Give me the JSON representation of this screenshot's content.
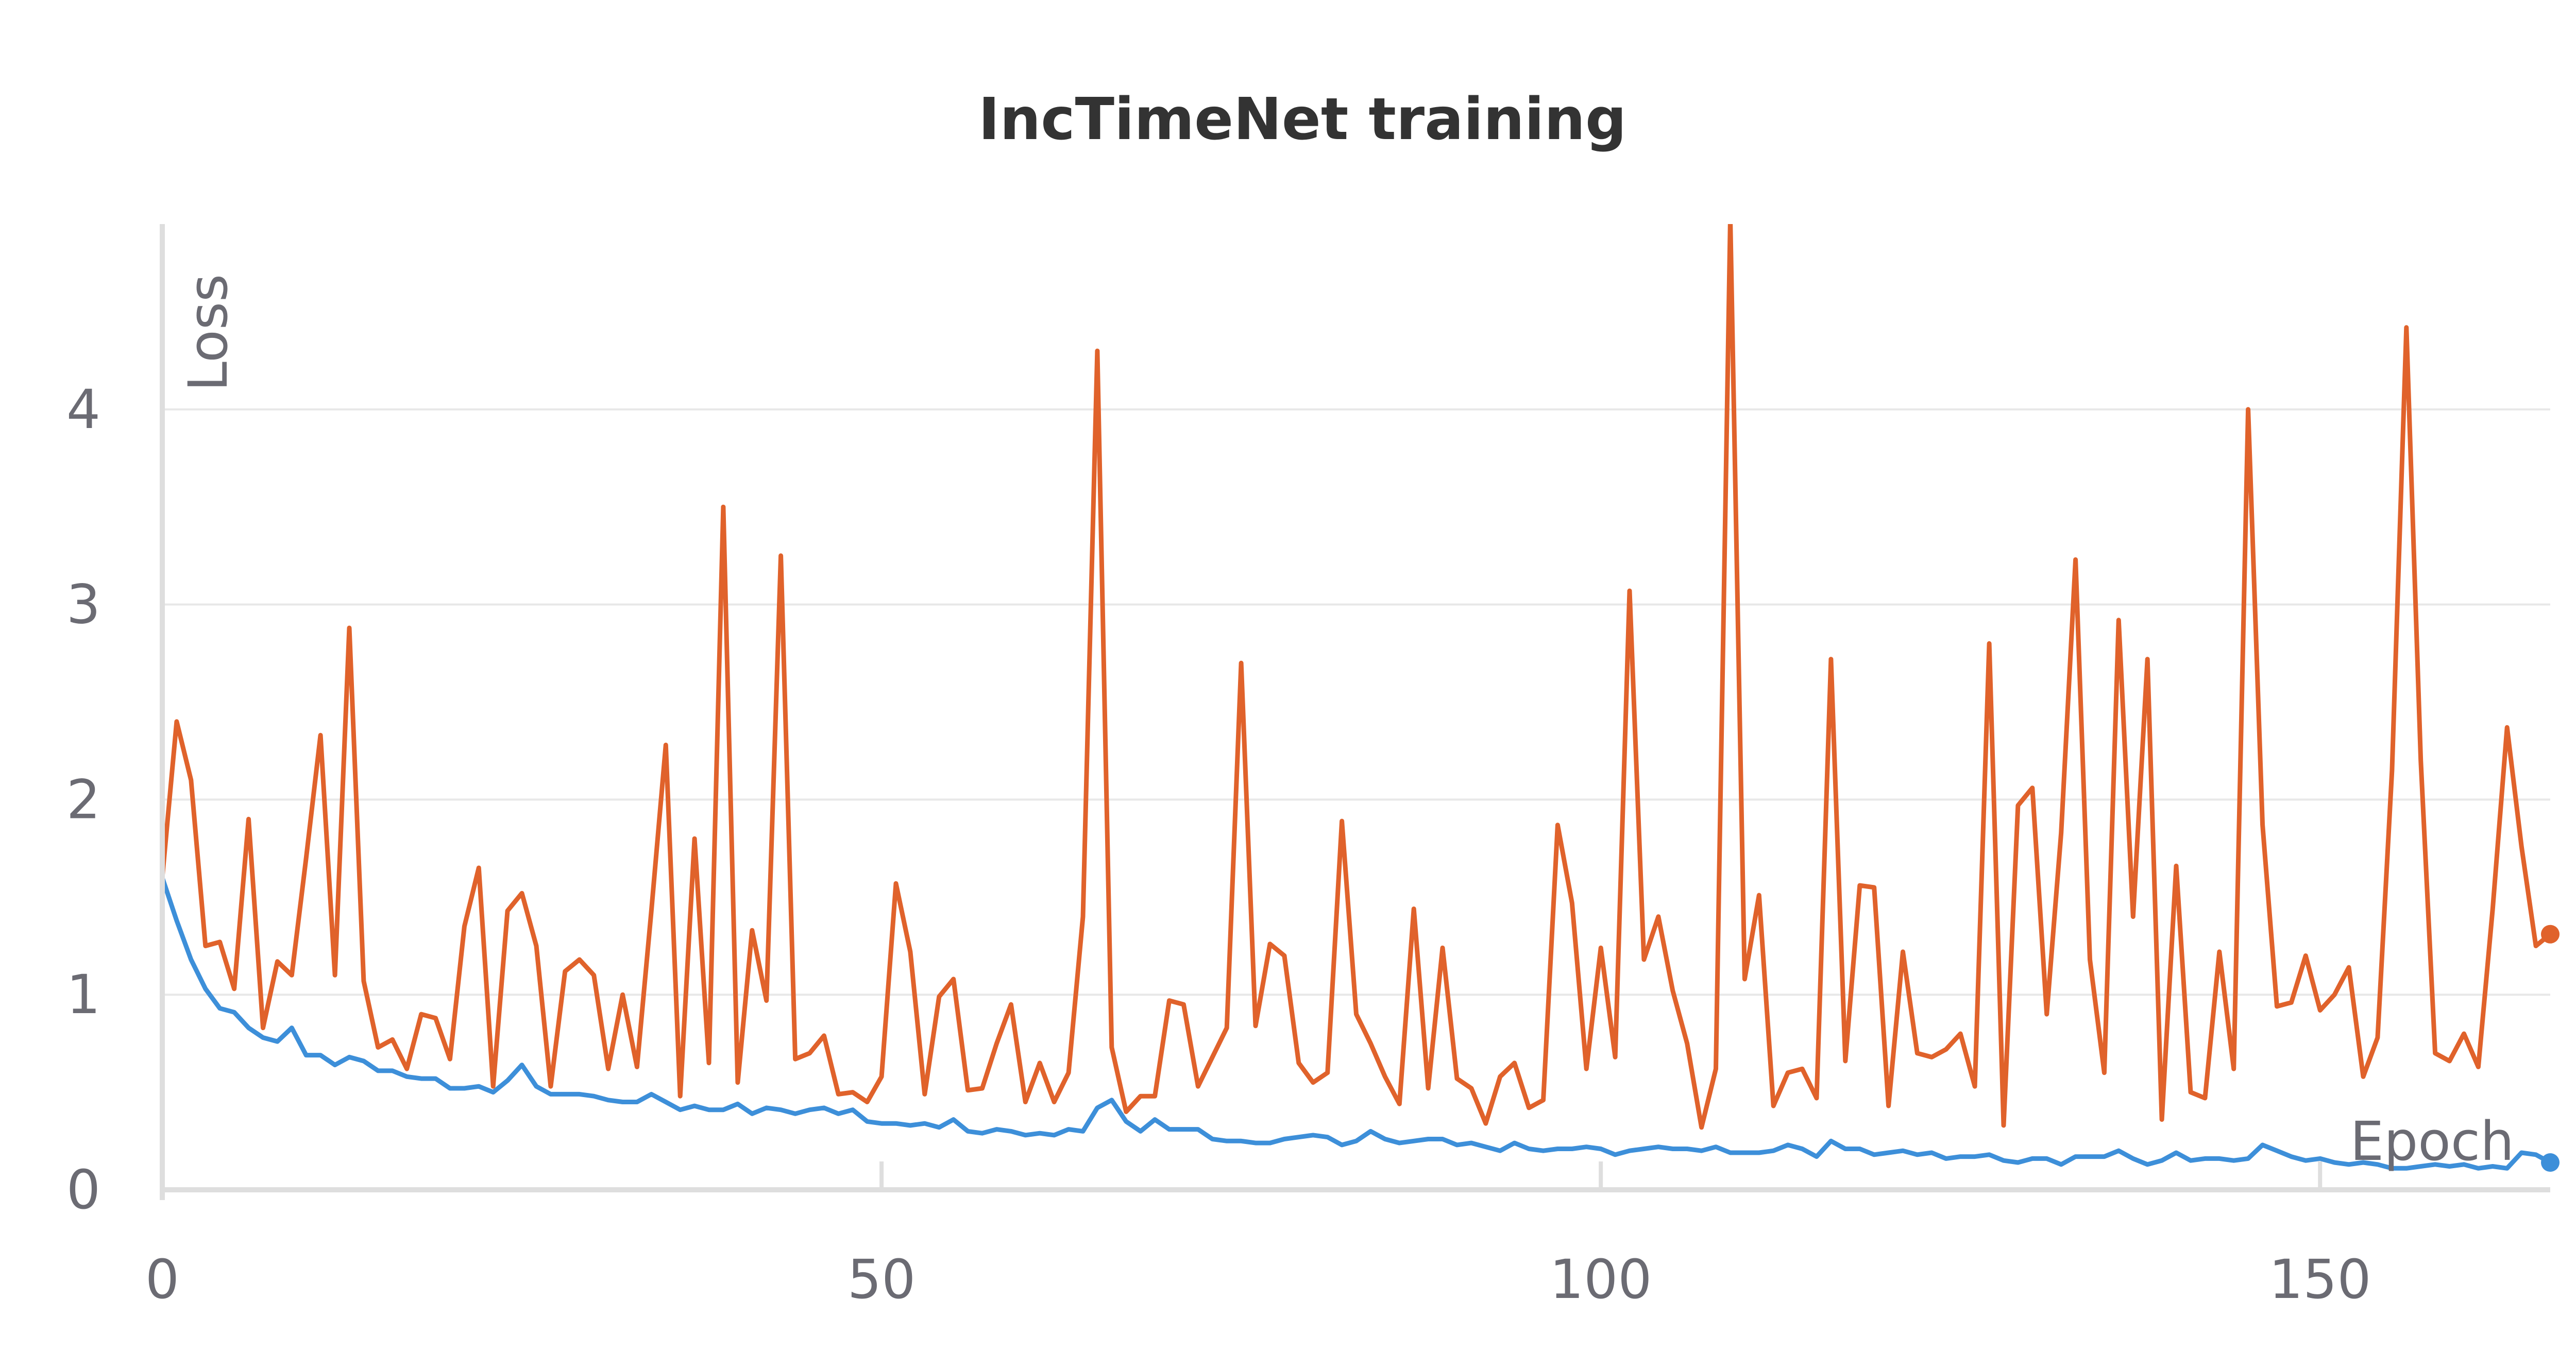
{
  "chart_data": {
    "type": "line",
    "title": "IncTimeNet training",
    "xlabel": "Epoch",
    "ylabel": "Loss",
    "xlim": [
      0,
      166
    ],
    "ylim": [
      0,
      4.95
    ],
    "xticks": [
      "0",
      "50",
      "100",
      "150"
    ],
    "yticks": [
      "0",
      "1",
      "2",
      "3",
      "4"
    ],
    "grid": true,
    "series": [
      {
        "color": "#e0622b",
        "values": [
          1.6,
          2.4,
          2.1,
          1.25,
          1.27,
          1.03,
          1.9,
          0.83,
          1.17,
          1.1,
          1.7,
          2.33,
          1.1,
          2.88,
          1.07,
          0.73,
          0.77,
          0.62,
          0.9,
          0.88,
          0.67,
          1.35,
          1.65,
          0.53,
          1.43,
          1.52,
          1.25,
          0.53,
          1.12,
          1.18,
          1.1,
          0.62,
          1.0,
          0.63,
          1.43,
          2.28,
          0.48,
          1.8,
          0.65,
          3.5,
          0.55,
          1.33,
          0.97,
          3.25,
          0.67,
          0.7,
          0.79,
          0.49,
          0.5,
          0.45,
          0.58,
          1.57,
          1.22,
          0.49,
          0.99,
          1.08,
          0.51,
          0.52,
          0.75,
          0.95,
          0.45,
          0.65,
          0.45,
          0.6,
          1.4,
          4.3,
          0.73,
          0.4,
          0.48,
          0.48,
          0.97,
          0.95,
          0.53,
          0.68,
          0.83,
          2.7,
          0.84,
          1.26,
          1.2,
          0.65,
          0.55,
          0.6,
          1.89,
          0.9,
          0.75,
          0.58,
          0.44,
          1.44,
          0.52,
          1.24,
          0.57,
          0.52,
          0.34,
          0.58,
          0.65,
          0.42,
          0.46,
          1.87,
          1.47,
          0.62,
          1.24,
          0.68,
          3.07,
          1.18,
          1.4,
          1.02,
          0.75,
          0.32,
          0.62,
          4.98,
          1.08,
          1.51,
          0.43,
          0.6,
          0.62,
          0.47,
          2.72,
          0.66,
          1.56,
          1.55,
          0.43,
          1.22,
          0.7,
          0.68,
          0.72,
          0.8,
          0.53,
          2.8,
          0.33,
          1.97,
          2.06,
          0.9,
          1.83,
          3.23,
          1.18,
          0.6,
          2.92,
          1.4,
          2.72,
          0.36,
          1.66,
          0.5,
          0.47,
          1.22,
          0.62,
          4.0,
          1.87,
          0.94,
          0.96,
          1.2,
          0.92,
          1.0,
          1.14,
          0.58,
          0.78,
          2.15,
          4.42,
          2.2,
          0.7,
          0.66,
          0.8,
          0.63,
          1.44,
          2.37,
          1.76,
          1.25,
          1.31
        ]
      },
      {
        "color": "#3d8fd9",
        "values": [
          1.6,
          1.38,
          1.18,
          1.03,
          0.93,
          0.91,
          0.83,
          0.78,
          0.76,
          0.83,
          0.69,
          0.69,
          0.64,
          0.68,
          0.66,
          0.61,
          0.61,
          0.58,
          0.57,
          0.57,
          0.52,
          0.52,
          0.53,
          0.5,
          0.56,
          0.64,
          0.53,
          0.49,
          0.49,
          0.49,
          0.48,
          0.46,
          0.45,
          0.45,
          0.49,
          0.45,
          0.41,
          0.43,
          0.41,
          0.41,
          0.44,
          0.39,
          0.42,
          0.41,
          0.39,
          0.41,
          0.42,
          0.39,
          0.41,
          0.35,
          0.34,
          0.34,
          0.33,
          0.34,
          0.32,
          0.36,
          0.3,
          0.29,
          0.31,
          0.3,
          0.28,
          0.29,
          0.28,
          0.31,
          0.3,
          0.42,
          0.46,
          0.35,
          0.3,
          0.36,
          0.31,
          0.31,
          0.31,
          0.26,
          0.25,
          0.25,
          0.24,
          0.24,
          0.26,
          0.27,
          0.28,
          0.27,
          0.23,
          0.25,
          0.3,
          0.26,
          0.24,
          0.25,
          0.26,
          0.26,
          0.23,
          0.24,
          0.22,
          0.2,
          0.24,
          0.21,
          0.2,
          0.21,
          0.21,
          0.22,
          0.21,
          0.18,
          0.2,
          0.21,
          0.22,
          0.21,
          0.21,
          0.2,
          0.22,
          0.19,
          0.19,
          0.19,
          0.2,
          0.23,
          0.21,
          0.17,
          0.25,
          0.21,
          0.21,
          0.18,
          0.19,
          0.2,
          0.18,
          0.19,
          0.16,
          0.17,
          0.17,
          0.18,
          0.15,
          0.14,
          0.16,
          0.16,
          0.13,
          0.17,
          0.17,
          0.17,
          0.2,
          0.16,
          0.13,
          0.15,
          0.19,
          0.15,
          0.16,
          0.16,
          0.15,
          0.16,
          0.23,
          0.2,
          0.17,
          0.15,
          0.16,
          0.14,
          0.13,
          0.14,
          0.13,
          0.11,
          0.11,
          0.12,
          0.13,
          0.12,
          0.13,
          0.11,
          0.12,
          0.11,
          0.19,
          0.18,
          0.14
        ]
      }
    ]
  }
}
